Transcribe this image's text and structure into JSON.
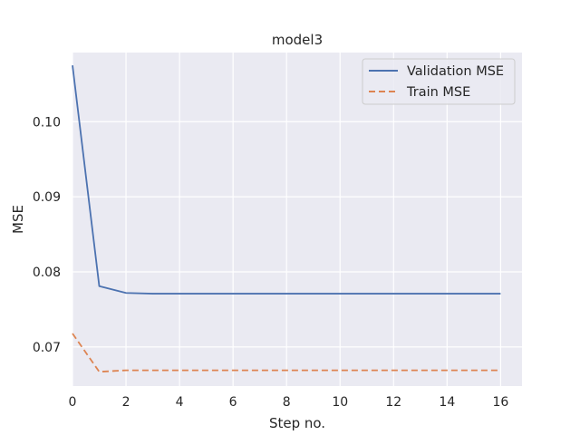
{
  "chart_data": {
    "type": "line",
    "title": "model3",
    "xlabel": "Step no.",
    "ylabel": "MSE",
    "xlim": [
      0,
      16.8
    ],
    "ylim": [
      0.0648,
      0.1092
    ],
    "x": [
      0,
      1,
      2,
      3,
      4,
      5,
      6,
      7,
      8,
      9,
      10,
      11,
      12,
      13,
      14,
      15,
      16
    ],
    "x_ticks": [
      0,
      2,
      4,
      6,
      8,
      10,
      12,
      14,
      16
    ],
    "y_ticks": [
      0.07,
      0.08,
      0.09,
      0.1
    ],
    "y_tick_labels": [
      "0.07",
      "0.08",
      "0.09",
      "0.10"
    ],
    "grid": true,
    "legend_position": "top-right",
    "series": [
      {
        "name": "Validation MSE",
        "color": "#4c72b0",
        "style": "solid",
        "values": [
          0.1075,
          0.0781,
          0.0772,
          0.0771,
          0.0771,
          0.0771,
          0.0771,
          0.0771,
          0.0771,
          0.0771,
          0.0771,
          0.0771,
          0.0771,
          0.0771,
          0.0771,
          0.0771,
          0.0771
        ]
      },
      {
        "name": "Train MSE",
        "color": "#dd8452",
        "style": "dashed",
        "values": [
          0.0718,
          0.0667,
          0.0669,
          0.0669,
          0.0669,
          0.0669,
          0.0669,
          0.0669,
          0.0669,
          0.0669,
          0.0669,
          0.0669,
          0.0669,
          0.0669,
          0.0669,
          0.0669,
          0.0669
        ]
      }
    ]
  }
}
